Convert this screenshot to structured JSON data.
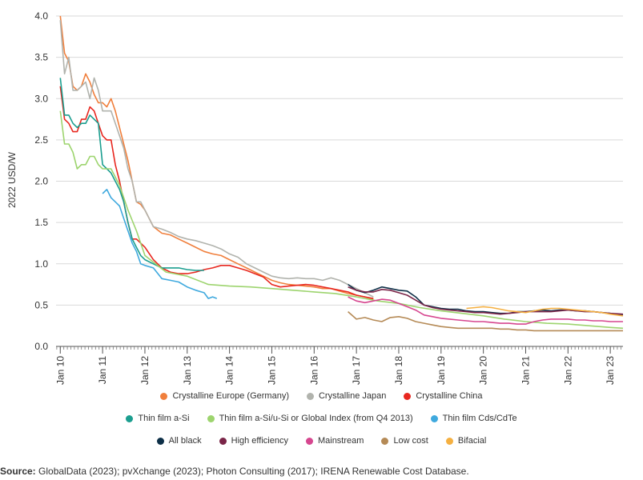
{
  "chart_data": {
    "type": "line",
    "title": "",
    "ylabel": "2022 USD/W",
    "xlabel": "",
    "ylim": [
      0,
      4.0
    ],
    "y_ticks": [
      "0.0",
      "0.5",
      "1.0",
      "1.5",
      "2.0",
      "2.5",
      "3.0",
      "3.5",
      "4.0"
    ],
    "x_ticks": [
      "Jan 10",
      "Jan 11",
      "Jan 12",
      "Jan 13",
      "Jan 14",
      "Jan 15",
      "Jan 16",
      "Jan 17",
      "Jan 18",
      "Jan 19",
      "Jan 20",
      "Jan 21",
      "Jan 22",
      "Jan 23"
    ],
    "xlim": [
      2009.9,
      2023.3
    ],
    "grid": "horizontal",
    "legend_position": "bottom",
    "series": [
      {
        "name": "Crystalline Europe (Germany)",
        "color": "#f07f3c",
        "x": [
          2010.0,
          2010.1,
          2010.2,
          2010.3,
          2010.4,
          2010.5,
          2010.6,
          2010.7,
          2010.8,
          2010.9,
          2011.0,
          2011.1,
          2011.2,
          2011.3,
          2011.4,
          2011.5,
          2011.6,
          2011.7,
          2011.8,
          2011.9,
          2012.0,
          2012.2,
          2012.4,
          2012.6,
          2012.8,
          2013.0,
          2013.2,
          2013.4,
          2013.6,
          2013.8,
          2014.0,
          2014.2,
          2014.4,
          2014.6,
          2014.8,
          2015.0,
          2015.2,
          2015.4,
          2015.6,
          2015.8,
          2016.0,
          2016.2,
          2016.4,
          2016.6,
          2016.8,
          2017.0,
          2017.2,
          2017.4
        ],
        "y": [
          4.0,
          3.55,
          3.45,
          3.15,
          3.1,
          3.15,
          3.3,
          3.2,
          3.05,
          2.95,
          2.95,
          2.9,
          3.0,
          2.85,
          2.65,
          2.45,
          2.25,
          2.0,
          1.75,
          1.72,
          1.65,
          1.45,
          1.37,
          1.35,
          1.3,
          1.25,
          1.2,
          1.15,
          1.12,
          1.1,
          1.05,
          1.0,
          0.95,
          0.9,
          0.85,
          0.8,
          0.77,
          0.75,
          0.74,
          0.73,
          0.72,
          0.7,
          0.7,
          0.67,
          0.64,
          0.62,
          0.6,
          0.57
        ]
      },
      {
        "name": "Crystalline Japan",
        "color": "#b1b3ad",
        "x": [
          2010.0,
          2010.1,
          2010.2,
          2010.3,
          2010.4,
          2010.5,
          2010.6,
          2010.7,
          2010.8,
          2010.9,
          2011.0,
          2011.1,
          2011.2,
          2011.3,
          2011.4,
          2011.5,
          2011.6,
          2011.7,
          2011.8,
          2011.9,
          2012.0,
          2012.2,
          2012.4,
          2012.6,
          2012.8,
          2013.0,
          2013.2,
          2013.4,
          2013.6,
          2013.8,
          2014.0,
          2014.2,
          2014.4,
          2014.6,
          2014.8,
          2015.0,
          2015.2,
          2015.4,
          2015.6,
          2015.8,
          2016.0,
          2016.2,
          2016.4,
          2016.6,
          2016.8,
          2017.0,
          2017.2,
          2017.4
        ],
        "y": [
          3.95,
          3.3,
          3.5,
          3.1,
          3.1,
          3.15,
          3.2,
          3.0,
          3.25,
          3.1,
          2.85,
          2.85,
          2.85,
          2.7,
          2.55,
          2.4,
          2.15,
          2.0,
          1.75,
          1.75,
          1.65,
          1.45,
          1.42,
          1.38,
          1.33,
          1.3,
          1.28,
          1.25,
          1.22,
          1.18,
          1.12,
          1.08,
          1.0,
          0.95,
          0.9,
          0.85,
          0.83,
          0.82,
          0.83,
          0.82,
          0.82,
          0.8,
          0.83,
          0.8,
          0.75,
          0.7,
          0.65,
          0.6
        ]
      },
      {
        "name": "Crystalline China",
        "color": "#e8271f",
        "x": [
          2010.0,
          2010.1,
          2010.2,
          2010.3,
          2010.4,
          2010.5,
          2010.6,
          2010.7,
          2010.8,
          2010.9,
          2011.0,
          2011.1,
          2011.2,
          2011.3,
          2011.4,
          2011.5,
          2011.6,
          2011.7,
          2011.8,
          2011.9,
          2012.0,
          2012.2,
          2012.4,
          2012.6,
          2012.8,
          2013.0,
          2013.2,
          2013.4,
          2013.6,
          2013.8,
          2014.0,
          2014.2,
          2014.4,
          2014.6,
          2014.8,
          2015.0,
          2015.2,
          2015.4,
          2015.6,
          2015.8,
          2016.0,
          2016.2,
          2016.4,
          2016.6,
          2016.8,
          2017.0,
          2017.2,
          2017.4
        ],
        "y": [
          3.15,
          2.75,
          2.7,
          2.6,
          2.6,
          2.75,
          2.75,
          2.9,
          2.85,
          2.7,
          2.55,
          2.5,
          2.5,
          2.2,
          2.0,
          1.75,
          1.5,
          1.3,
          1.3,
          1.25,
          1.2,
          1.05,
          0.95,
          0.9,
          0.88,
          0.88,
          0.9,
          0.93,
          0.95,
          0.98,
          0.98,
          0.95,
          0.92,
          0.88,
          0.84,
          0.75,
          0.72,
          0.73,
          0.74,
          0.75,
          0.74,
          0.72,
          0.7,
          0.68,
          0.66,
          0.62,
          0.6,
          0.58
        ]
      },
      {
        "name": "Thin film a-Si",
        "color": "#1b9e8f",
        "x": [
          2010.0,
          2010.1,
          2010.2,
          2010.3,
          2010.4,
          2010.5,
          2010.6,
          2010.7,
          2010.8,
          2010.9,
          2011.0,
          2011.1,
          2011.2,
          2011.3,
          2011.4,
          2011.5,
          2011.6,
          2011.7,
          2011.8,
          2011.9,
          2012.0,
          2012.2,
          2012.4,
          2012.6,
          2012.8,
          2013.0,
          2013.2,
          2013.4
        ],
        "y": [
          3.25,
          2.8,
          2.8,
          2.7,
          2.65,
          2.7,
          2.7,
          2.8,
          2.75,
          2.7,
          2.2,
          2.15,
          2.1,
          2.0,
          1.9,
          1.75,
          1.5,
          1.3,
          1.2,
          1.1,
          1.05,
          1.0,
          0.95,
          0.95,
          0.95,
          0.93,
          0.92,
          0.92
        ]
      },
      {
        "name": "Thin film a-Si/u-Si or Global Index (from Q4 2013)",
        "color": "#9dd46e",
        "x": [
          2010.0,
          2010.1,
          2010.2,
          2010.3,
          2010.4,
          2010.5,
          2010.6,
          2010.7,
          2010.8,
          2010.9,
          2011.0,
          2011.2,
          2011.4,
          2011.6,
          2011.8,
          2012.0,
          2012.5,
          2013.0,
          2013.5,
          2014.0,
          2014.5,
          2015.0,
          2015.5,
          2016.0,
          2016.5,
          2017.0,
          2017.5,
          2018.0,
          2018.5,
          2019.0,
          2019.5,
          2020.0,
          2020.5,
          2021.0,
          2021.5,
          2022.0,
          2022.5,
          2023.0,
          2023.3
        ],
        "y": [
          2.85,
          2.45,
          2.45,
          2.35,
          2.15,
          2.2,
          2.2,
          2.3,
          2.3,
          2.2,
          2.15,
          2.15,
          1.95,
          1.65,
          1.4,
          1.1,
          0.9,
          0.85,
          0.75,
          0.73,
          0.72,
          0.7,
          0.68,
          0.66,
          0.64,
          0.6,
          0.55,
          0.52,
          0.47,
          0.43,
          0.4,
          0.37,
          0.33,
          0.3,
          0.28,
          0.27,
          0.25,
          0.23,
          0.22
        ]
      },
      {
        "name": "Thin film Cds/CdTe",
        "color": "#3fa9de",
        "x": [
          2011.0,
          2011.1,
          2011.2,
          2011.3,
          2011.4,
          2011.5,
          2011.6,
          2011.7,
          2011.8,
          2011.9,
          2012.0,
          2012.2,
          2012.4,
          2012.6,
          2012.8,
          2013.0,
          2013.2,
          2013.4,
          2013.5,
          2013.6,
          2013.7
        ],
        "y": [
          1.85,
          1.9,
          1.8,
          1.75,
          1.7,
          1.55,
          1.4,
          1.25,
          1.15,
          1.0,
          0.98,
          0.95,
          0.82,
          0.8,
          0.78,
          0.72,
          0.68,
          0.65,
          0.58,
          0.6,
          0.58
        ]
      },
      {
        "name": "All black",
        "color": "#0d2f47",
        "x": [
          2016.8,
          2017.0,
          2017.2,
          2017.4,
          2017.6,
          2017.8,
          2018.0,
          2018.2,
          2018.4,
          2018.6,
          2018.8,
          2019.0,
          2019.2,
          2019.4,
          2019.6,
          2019.8,
          2020.0,
          2020.2,
          2020.4,
          2020.6,
          2020.8,
          2021.0,
          2021.2,
          2021.4,
          2021.6,
          2021.8,
          2022.0,
          2022.2,
          2022.4,
          2022.6,
          2022.8,
          2023.0,
          2023.3
        ],
        "y": [
          0.75,
          0.68,
          0.65,
          0.68,
          0.72,
          0.7,
          0.68,
          0.67,
          0.6,
          0.5,
          0.48,
          0.46,
          0.45,
          0.45,
          0.43,
          0.42,
          0.42,
          0.41,
          0.4,
          0.4,
          0.42,
          0.42,
          0.43,
          0.44,
          0.43,
          0.44,
          0.44,
          0.43,
          0.43,
          0.42,
          0.41,
          0.4,
          0.38
        ]
      },
      {
        "name": "High efficiency",
        "color": "#7a2548",
        "x": [
          2016.8,
          2017.0,
          2017.2,
          2017.4,
          2017.6,
          2017.8,
          2018.0,
          2018.2,
          2018.4,
          2018.6,
          2018.8,
          2019.0,
          2019.2,
          2019.4,
          2019.6,
          2019.8,
          2020.0,
          2020.2,
          2020.4,
          2020.6,
          2020.8,
          2021.0,
          2021.2,
          2021.4,
          2021.6,
          2021.8,
          2022.0,
          2022.2,
          2022.4,
          2022.6,
          2022.8,
          2023.0,
          2023.3
        ],
        "y": [
          0.72,
          0.68,
          0.66,
          0.66,
          0.69,
          0.68,
          0.65,
          0.62,
          0.56,
          0.5,
          0.47,
          0.45,
          0.44,
          0.43,
          0.42,
          0.41,
          0.41,
          0.4,
          0.39,
          0.4,
          0.41,
          0.42,
          0.42,
          0.42,
          0.42,
          0.43,
          0.44,
          0.43,
          0.42,
          0.42,
          0.41,
          0.4,
          0.39
        ]
      },
      {
        "name": "Mainstream",
        "color": "#d6468f",
        "x": [
          2016.8,
          2017.0,
          2017.2,
          2017.4,
          2017.6,
          2017.8,
          2018.0,
          2018.2,
          2018.4,
          2018.6,
          2018.8,
          2019.0,
          2019.2,
          2019.4,
          2019.6,
          2019.8,
          2020.0,
          2020.2,
          2020.4,
          2020.6,
          2020.8,
          2021.0,
          2021.2,
          2021.4,
          2021.6,
          2021.8,
          2022.0,
          2022.2,
          2022.4,
          2022.6,
          2022.8,
          2023.0,
          2023.3
        ],
        "y": [
          0.6,
          0.55,
          0.53,
          0.55,
          0.57,
          0.56,
          0.52,
          0.48,
          0.44,
          0.38,
          0.36,
          0.34,
          0.33,
          0.32,
          0.31,
          0.3,
          0.3,
          0.29,
          0.28,
          0.28,
          0.27,
          0.27,
          0.3,
          0.32,
          0.33,
          0.33,
          0.33,
          0.32,
          0.32,
          0.31,
          0.31,
          0.3,
          0.3
        ]
      },
      {
        "name": "Low cost",
        "color": "#b58a56",
        "x": [
          2016.8,
          2017.0,
          2017.2,
          2017.4,
          2017.6,
          2017.8,
          2018.0,
          2018.2,
          2018.4,
          2018.6,
          2018.8,
          2019.0,
          2019.2,
          2019.4,
          2019.6,
          2019.8,
          2020.0,
          2020.2,
          2020.4,
          2020.6,
          2020.8,
          2021.0,
          2021.2,
          2021.4,
          2021.6,
          2021.8,
          2022.0,
          2022.2,
          2022.4,
          2022.6,
          2022.8,
          2023.0,
          2023.3
        ],
        "y": [
          0.42,
          0.33,
          0.35,
          0.32,
          0.3,
          0.35,
          0.36,
          0.34,
          0.3,
          0.28,
          0.26,
          0.24,
          0.23,
          0.22,
          0.22,
          0.22,
          0.22,
          0.22,
          0.21,
          0.21,
          0.2,
          0.2,
          0.19,
          0.19,
          0.19,
          0.19,
          0.19,
          0.19,
          0.19,
          0.19,
          0.19,
          0.19,
          0.19
        ]
      },
      {
        "name": "Bifacial",
        "color": "#f5b041",
        "x": [
          2019.6,
          2019.8,
          2020.0,
          2020.2,
          2020.4,
          2020.6,
          2020.8,
          2021.0,
          2021.2,
          2021.4,
          2021.6,
          2021.8,
          2022.0,
          2022.2,
          2022.4,
          2022.6,
          2022.8,
          2023.0,
          2023.3
        ],
        "y": [
          0.46,
          0.47,
          0.48,
          0.47,
          0.45,
          0.43,
          0.42,
          0.41,
          0.43,
          0.45,
          0.46,
          0.46,
          0.45,
          0.44,
          0.43,
          0.42,
          0.41,
          0.39,
          0.37
        ]
      }
    ],
    "legend_rows": [
      [
        0,
        1,
        2
      ],
      [
        3,
        4,
        5
      ],
      [
        6,
        7,
        8,
        9,
        10
      ]
    ]
  },
  "source": {
    "label": "Source:",
    "text": " GlobalData (2023); pvXchange (2023); Photon Consulting (2017); IRENA Renewable Cost Database."
  }
}
